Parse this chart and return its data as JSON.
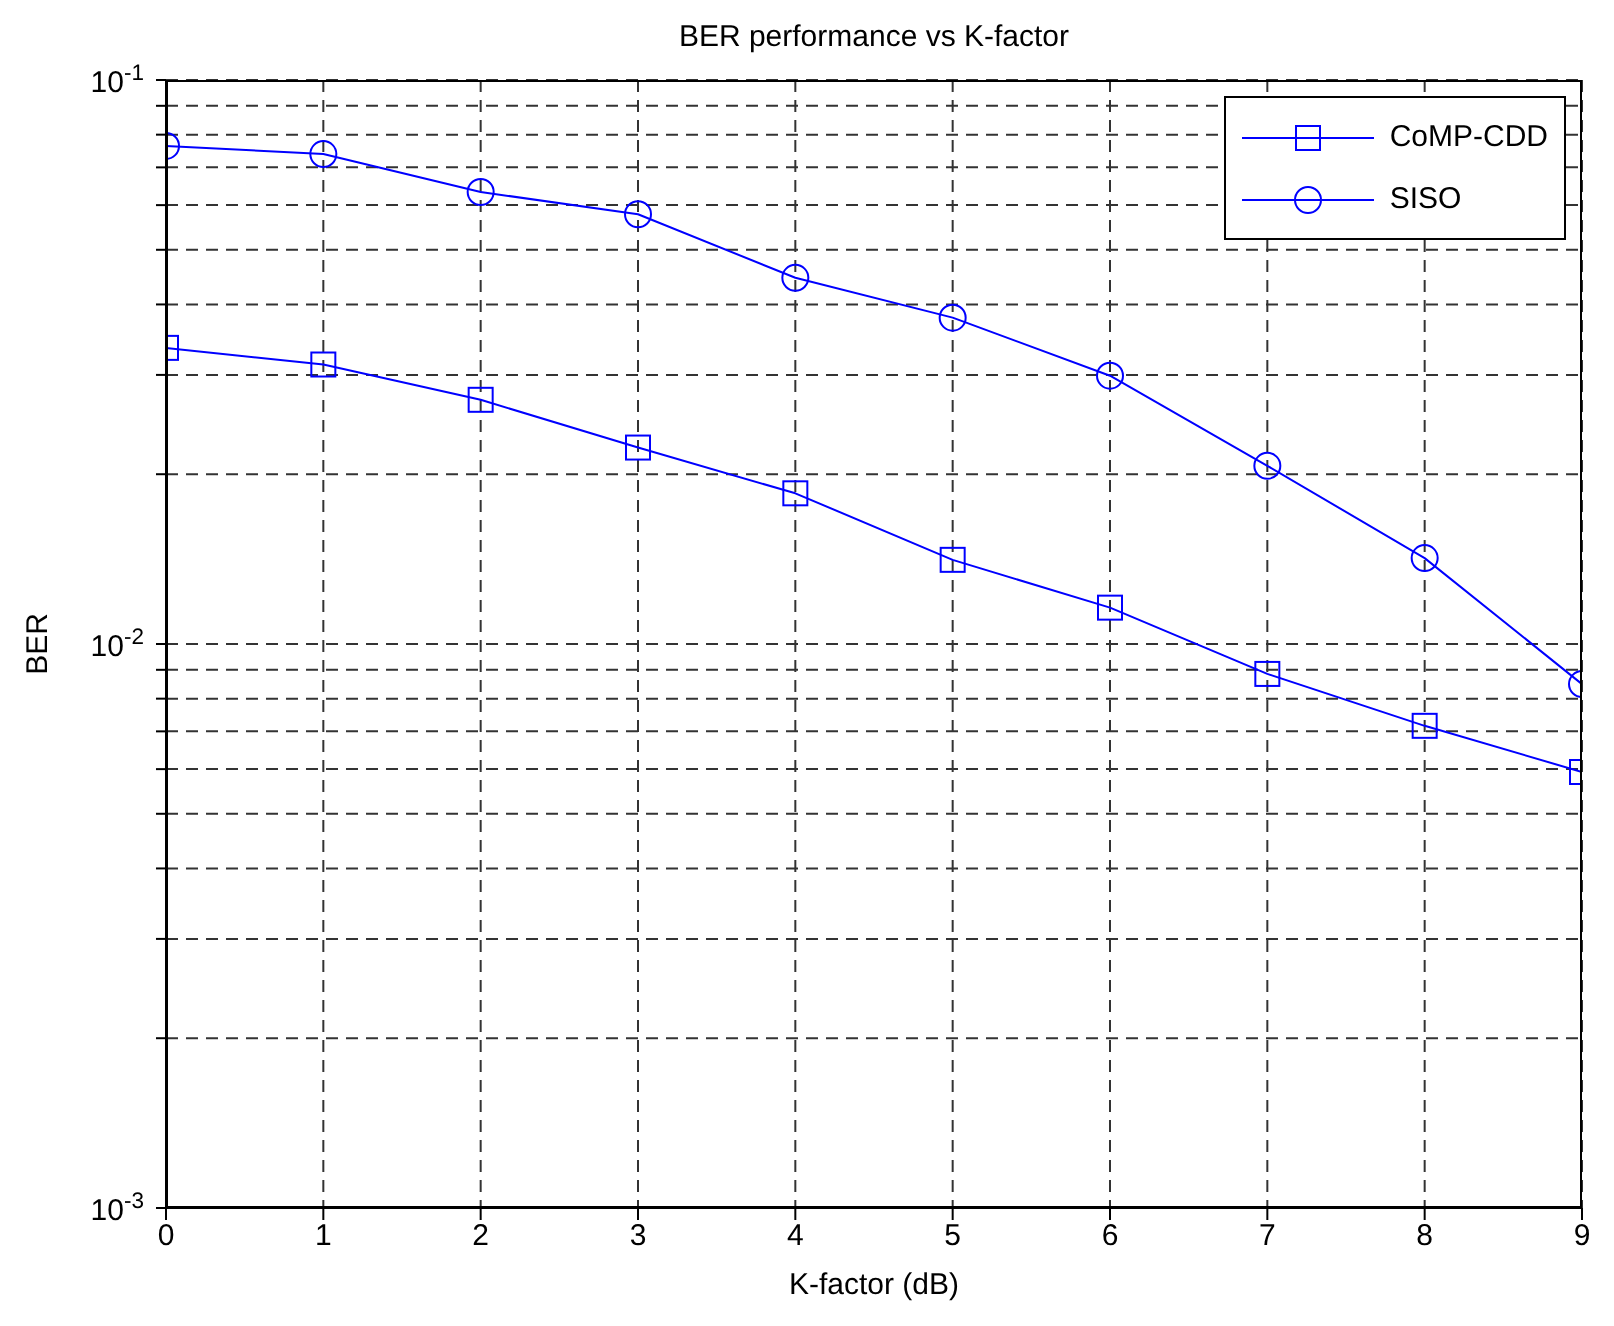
{
  "chart_data": {
    "type": "line",
    "title": "BER performance vs K-factor",
    "xlabel": "K-factor (dB)",
    "ylabel": "BER",
    "x": [
      0,
      1,
      2,
      3,
      4,
      5,
      6,
      7,
      8,
      9
    ],
    "series": [
      {
        "name": "CoMP-CDD",
        "color": "#0000ff",
        "marker": "square",
        "values": [
          0.0335,
          0.0313,
          0.0271,
          0.0223,
          0.0185,
          0.0141,
          0.0116,
          0.00885,
          0.00716,
          0.00593
        ]
      },
      {
        "name": "SISO",
        "color": "#0000ff",
        "marker": "circle",
        "values": [
          0.0764,
          0.0739,
          0.0633,
          0.0578,
          0.0446,
          0.0379,
          0.0299,
          0.0207,
          0.0142,
          0.00849
        ]
      }
    ],
    "xlim": [
      0,
      9
    ],
    "xticks": [
      0,
      1,
      2,
      3,
      4,
      5,
      6,
      7,
      8,
      9
    ],
    "ylim": [
      0.001,
      0.1
    ],
    "yticks": [
      {
        "value": 0.001,
        "label": "10$^{-3}$"
      },
      {
        "value": 0.002,
        "label": null
      },
      {
        "value": 0.003,
        "label": null
      },
      {
        "value": 0.004,
        "label": null
      },
      {
        "value": 0.005,
        "label": null
      },
      {
        "value": 0.006,
        "label": null
      },
      {
        "value": 0.007,
        "label": null
      },
      {
        "value": 0.008,
        "label": null
      },
      {
        "value": 0.009,
        "label": null
      },
      {
        "value": 0.01,
        "label": "10$^{-2}$"
      },
      {
        "value": 0.02,
        "label": null
      },
      {
        "value": 0.03,
        "label": null
      },
      {
        "value": 0.04,
        "label": null
      },
      {
        "value": 0.05,
        "label": null
      },
      {
        "value": 0.06,
        "label": null
      },
      {
        "value": 0.07,
        "label": null
      },
      {
        "value": 0.08,
        "label": null
      },
      {
        "value": 0.09,
        "label": null
      },
      {
        "value": 0.1,
        "label": "10$^{-1}$"
      }
    ],
    "log": "y",
    "grid": true,
    "legend": "top right",
    "line_style": "solid"
  }
}
